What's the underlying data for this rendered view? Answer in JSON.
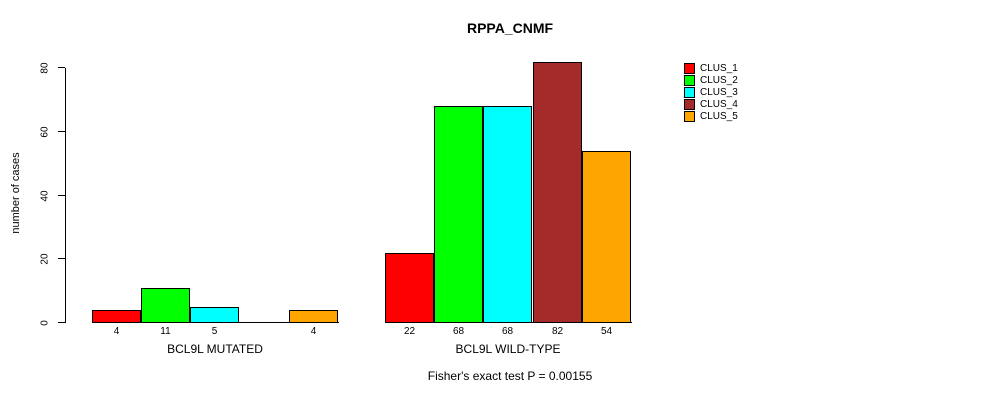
{
  "chart_data": {
    "type": "bar",
    "title": "RPPA_CNMF",
    "ylabel": "number of cases",
    "xlabel": "",
    "ylim": [
      0,
      80
    ],
    "yticks": [
      0,
      20,
      40,
      60,
      80
    ],
    "grid": false,
    "legend_position": "right",
    "series": [
      {
        "name": "CLUS_1",
        "color": "#FF0000"
      },
      {
        "name": "CLUS_2",
        "color": "#00FF00"
      },
      {
        "name": "CLUS_3",
        "color": "#00FFFF"
      },
      {
        "name": "CLUS_4",
        "color": "#A52A2A"
      },
      {
        "name": "CLUS_5",
        "color": "#FFA500"
      }
    ],
    "categories": [
      "BCL9L MUTATED",
      "BCL9L WILD-TYPE"
    ],
    "groups": [
      {
        "label": "BCL9L MUTATED",
        "values": [
          4,
          11,
          5,
          0,
          4
        ],
        "bar_labels": [
          "4",
          "11",
          "5",
          "",
          "4"
        ]
      },
      {
        "label": "BCL9L WILD-TYPE",
        "values": [
          22,
          68,
          68,
          82,
          54
        ],
        "bar_labels": [
          "22",
          "68",
          "68",
          "82",
          "54"
        ]
      }
    ],
    "footnote": "Fisher's exact test P = 0.00155"
  }
}
